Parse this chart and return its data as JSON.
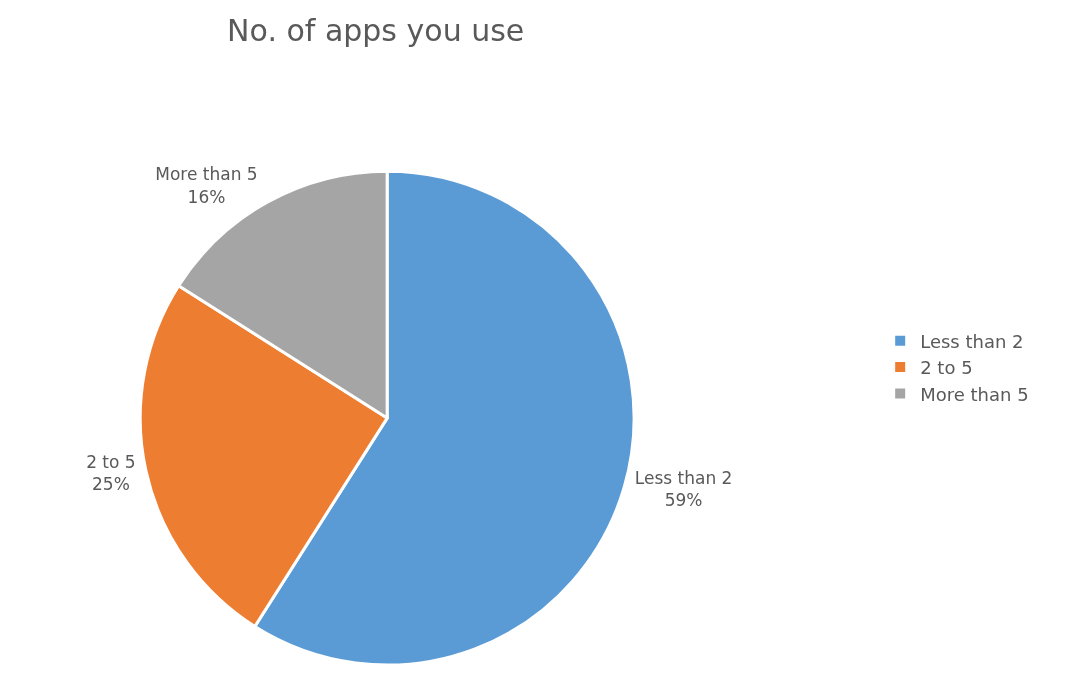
{
  "chart_data": {
    "type": "pie",
    "title": "No. of apps you use",
    "categories": [
      "Less than 2",
      "2 to 5",
      "More than 5"
    ],
    "values": [
      59,
      25,
      16
    ],
    "colors": [
      "#5b9bd5",
      "#ed7d31",
      "#a5a5a5"
    ],
    "value_labels": [
      "59%",
      "25%",
      "16%"
    ],
    "legend": "right"
  }
}
